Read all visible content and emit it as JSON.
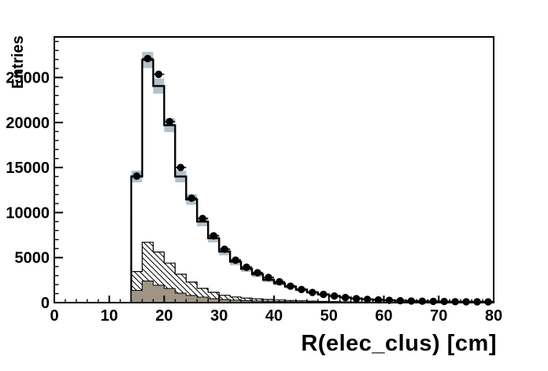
{
  "figure": {
    "background": "#ffffff",
    "frame_line_color": "#000000"
  },
  "chart_data": {
    "type": "bar",
    "subtype": "stepped-histogram-overlay",
    "title": "",
    "xlabel": "R(elec_clus) [cm]",
    "ylabel": "Entries",
    "xlim": [
      0,
      80
    ],
    "ylim": [
      0,
      29500
    ],
    "x_major_ticks": [
      0,
      10,
      20,
      30,
      40,
      50,
      60,
      70,
      80
    ],
    "x_tick_labels": [
      "0",
      "10",
      "20",
      "30",
      "40",
      "50",
      "60",
      "70",
      "80"
    ],
    "x_minor_step": 2,
    "y_major_ticks": [
      0,
      5000,
      10000,
      15000,
      20000,
      25000
    ],
    "y_tick_labels": [
      "0",
      "5000",
      "10000",
      "15000",
      "20000",
      "25000"
    ],
    "y_minor_step": 1000,
    "grid": false,
    "legend": "none",
    "bins": {
      "start": 14,
      "width": 2,
      "count": 33,
      "centers": [
        15,
        17,
        19,
        21,
        23,
        25,
        27,
        29,
        31,
        33,
        35,
        37,
        39,
        41,
        43,
        45,
        47,
        49,
        51,
        53,
        55,
        57,
        59,
        61,
        63,
        65,
        67,
        69,
        71,
        73,
        75,
        77,
        79
      ]
    },
    "series": [
      {
        "name": "total-mc-histogram",
        "style": "step-outline",
        "line_color": "#000000",
        "fill_color": "#ffffff",
        "values": [
          14000,
          26950,
          24050,
          19700,
          14000,
          11450,
          9000,
          7150,
          5670,
          4530,
          3750,
          3140,
          2530,
          2150,
          1780,
          1440,
          1140,
          910,
          730,
          580,
          460,
          370,
          300,
          250,
          210,
          175,
          150,
          130,
          115,
          100,
          90,
          82,
          75
        ]
      },
      {
        "name": "mc-stat-error-boxes",
        "style": "error-boxes",
        "color": "#b4c1cb",
        "half_height_rule": "5.5*sqrt(value)",
        "err_scale": 5.5
      },
      {
        "name": "hatched-component-histogram",
        "style": "step-hatched",
        "line_color": "#000000",
        "hatch": "diagonal-down",
        "values": [
          3450,
          6700,
          5620,
          4380,
          3150,
          2280,
          1580,
          1140,
          810,
          630,
          510,
          420,
          350,
          290,
          240,
          200,
          165,
          135,
          110,
          90,
          70,
          55,
          45,
          35,
          28,
          22,
          18,
          14,
          11,
          9,
          7,
          6,
          5
        ]
      },
      {
        "name": "solid-component-histogram",
        "style": "step-filled",
        "fill_color": "#a09584",
        "line_color": "#000000",
        "values": [
          1350,
          2400,
          1930,
          1570,
          1050,
          790,
          610,
          440,
          340,
          270,
          220,
          180,
          150,
          120,
          100,
          80,
          65,
          52,
          42,
          34,
          27,
          22,
          18,
          14,
          11,
          9,
          7,
          6,
          5,
          4,
          3,
          3,
          2
        ]
      },
      {
        "name": "data-points",
        "style": "scatter-markers",
        "marker": "filled-circle",
        "color": "#000000",
        "x_error": "half-bin-width",
        "values": [
          14050,
          27100,
          25350,
          20100,
          15000,
          11600,
          9340,
          7420,
          5930,
          4710,
          3930,
          3320,
          2790,
          2320,
          1820,
          1460,
          1130,
          915,
          735,
          565,
          445,
          365,
          300,
          252,
          212,
          180,
          156,
          136,
          120,
          106,
          95,
          86,
          80
        ]
      }
    ]
  }
}
